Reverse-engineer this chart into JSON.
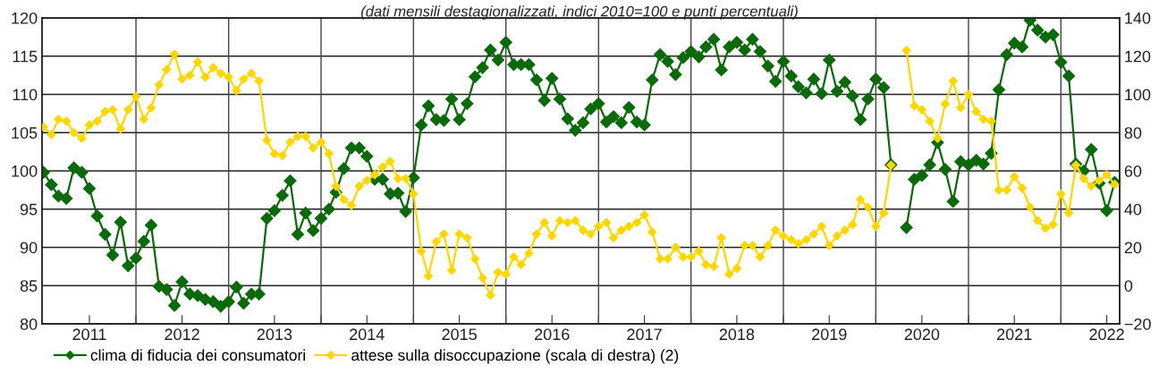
{
  "chart_data": {
    "type": "line",
    "subtitle": "(dati mensili destagionalizzati, indici 2010=100 e punti percentuali)",
    "x": [
      "2011-01",
      "2011-02",
      "2011-03",
      "2011-04",
      "2011-05",
      "2011-06",
      "2011-07",
      "2011-08",
      "2011-09",
      "2011-10",
      "2011-11",
      "2011-12",
      "2012-01",
      "2012-02",
      "2012-03",
      "2012-04",
      "2012-05",
      "2012-06",
      "2012-07",
      "2012-08",
      "2012-09",
      "2012-10",
      "2012-11",
      "2012-12",
      "2013-01",
      "2013-02",
      "2013-03",
      "2013-04",
      "2013-05",
      "2013-06",
      "2013-07",
      "2013-08",
      "2013-09",
      "2013-10",
      "2013-11",
      "2013-12",
      "2014-01",
      "2014-02",
      "2014-03",
      "2014-04",
      "2014-05",
      "2014-06",
      "2014-07",
      "2014-08",
      "2014-09",
      "2014-10",
      "2014-11",
      "2014-12",
      "2015-01",
      "2015-02",
      "2015-03",
      "2015-04",
      "2015-05",
      "2015-06",
      "2015-07",
      "2015-08",
      "2015-09",
      "2015-10",
      "2015-11",
      "2015-12",
      "2016-01",
      "2016-02",
      "2016-03",
      "2016-04",
      "2016-05",
      "2016-06",
      "2016-07",
      "2016-08",
      "2016-09",
      "2016-10",
      "2016-11",
      "2016-12",
      "2017-01",
      "2017-02",
      "2017-03",
      "2017-04",
      "2017-05",
      "2017-06",
      "2017-07",
      "2017-08",
      "2017-09",
      "2017-10",
      "2017-11",
      "2017-12",
      "2018-01",
      "2018-02",
      "2018-03",
      "2018-04",
      "2018-05",
      "2018-06",
      "2018-07",
      "2018-08",
      "2018-09",
      "2018-10",
      "2018-11",
      "2018-12",
      "2019-01",
      "2019-02",
      "2019-03",
      "2019-04",
      "2019-05",
      "2019-06",
      "2019-07",
      "2019-08",
      "2019-09",
      "2019-10",
      "2019-11",
      "2019-12",
      "2020-01",
      "2020-02",
      "2020-03",
      "2020-04",
      "2020-05",
      "2020-06",
      "2020-07",
      "2020-08",
      "2020-09",
      "2020-10",
      "2020-11",
      "2020-12",
      "2021-01",
      "2021-02",
      "2021-03",
      "2021-04",
      "2021-05",
      "2021-06",
      "2021-07",
      "2021-08",
      "2021-09",
      "2021-10",
      "2021-11",
      "2021-12",
      "2022-01",
      "2022-02",
      "2022-03",
      "2022-04",
      "2022-05",
      "2022-06",
      "2022-07",
      "2022-08"
    ],
    "series": [
      {
        "name": "clima di fiducia dei consumatori",
        "color": "#0a6a0a",
        "values": [
          99.8,
          98.2,
          96.7,
          96.4,
          100.4,
          99.8,
          97.7,
          94.1,
          91.7,
          89.0,
          93.3,
          87.6,
          88.6,
          90.8,
          92.9,
          84.9,
          84.5,
          82.4,
          85.5,
          83.9,
          83.7,
          83.2,
          82.9,
          82.3,
          82.9,
          84.8,
          82.7,
          83.9,
          83.9,
          93.8,
          94.8,
          96.8,
          98.7,
          91.7,
          94.5,
          92.2,
          93.8,
          95.0,
          97.2,
          100.3,
          103.0,
          103.0,
          101.9,
          98.9,
          98.9,
          97.0,
          97.1,
          94.7,
          99.1,
          106.0,
          108.5,
          106.7,
          106.6,
          109.4,
          106.7,
          108.8,
          112.3,
          113.5,
          115.8,
          114.5,
          116.8,
          113.9,
          113.9,
          113.9,
          111.9,
          109.2,
          112.1,
          109.4,
          106.8,
          105.3,
          106.3,
          108.1,
          108.8,
          106.4,
          107.1,
          106.3,
          108.3,
          106.4,
          106.0,
          111.9,
          115.2,
          114.3,
          112.6,
          114.8,
          115.6,
          114.9,
          116.2,
          117.2,
          113.2,
          116.2,
          116.8,
          115.8,
          117.2,
          115.6,
          113.7,
          111.7,
          114.3,
          112.4,
          111.0,
          110.2,
          112.0,
          110.1,
          114.5,
          110.4,
          111.6,
          109.8,
          106.7,
          109.4,
          112.0,
          110.9,
          100.8,
          null,
          92.6,
          98.9,
          99.4,
          100.8,
          103.7,
          100.2,
          96.0,
          101.2,
          100.8,
          101.4,
          100.9,
          102.3,
          110.6,
          115.2,
          116.7,
          116.2,
          119.7,
          118.4,
          117.5,
          117.8,
          114.2,
          112.4,
          100.9,
          100.0,
          102.8,
          98.4,
          94.8,
          98.5
        ]
      },
      {
        "name": "attese sulla disoccupazione (scala di destra) (2)",
        "color": "#ffd700",
        "axis": "y2",
        "values": [
          83,
          79,
          87,
          86,
          80,
          77,
          84,
          86,
          91,
          92,
          82,
          92,
          99,
          87,
          93,
          105,
          113,
          121,
          108,
          110,
          117,
          109,
          114,
          111,
          109,
          102,
          108,
          111,
          107,
          76,
          69,
          68,
          75,
          78,
          78,
          72,
          75,
          69,
          52,
          45,
          42,
          52,
          55,
          58,
          62,
          65,
          56,
          56,
          48,
          18,
          5,
          23,
          27,
          8,
          27,
          25,
          14,
          4,
          -5,
          7,
          6,
          15,
          11,
          17,
          27,
          33,
          26,
          34,
          33,
          34,
          29,
          27,
          31,
          33,
          25,
          29,
          31,
          33,
          37,
          28,
          14,
          14,
          20,
          15,
          15,
          18,
          11,
          10,
          25,
          6,
          9,
          21,
          21,
          15,
          21,
          29,
          26,
          24,
          22,
          24,
          27,
          31,
          21,
          26,
          29,
          32,
          45,
          41,
          31,
          38,
          63,
          null,
          123,
          94,
          92,
          86,
          77,
          95,
          107,
          93,
          100,
          91,
          87,
          86,
          50,
          50,
          57,
          51,
          41,
          34,
          30,
          32,
          48,
          38,
          63,
          56,
          52,
          55,
          58,
          53
        ]
      }
    ],
    "xlim": [
      "2010-12-26",
      "2022-08-21"
    ],
    "xticks": [
      {
        "value": "2011-07",
        "label": "2011"
      },
      {
        "value": "2012-01",
        "label": null
      },
      {
        "value": "2012-07",
        "label": "2012"
      },
      {
        "value": "2013-01",
        "label": null
      },
      {
        "value": "2013-07",
        "label": "2013"
      },
      {
        "value": "2014-01",
        "label": null
      },
      {
        "value": "2014-07",
        "label": "2014"
      },
      {
        "value": "2015-01",
        "label": null
      },
      {
        "value": "2015-07",
        "label": "2015"
      },
      {
        "value": "2016-01",
        "label": null
      },
      {
        "value": "2016-07",
        "label": "2016"
      },
      {
        "value": "2017-01",
        "label": null
      },
      {
        "value": "2017-07",
        "label": "2017"
      },
      {
        "value": "2018-01",
        "label": null
      },
      {
        "value": "2018-07",
        "label": "2018"
      },
      {
        "value": "2019-01",
        "label": null
      },
      {
        "value": "2019-07",
        "label": "2019"
      },
      {
        "value": "2020-01",
        "label": null
      },
      {
        "value": "2020-07",
        "label": "2020"
      },
      {
        "value": "2021-01",
        "label": null
      },
      {
        "value": "2021-07",
        "label": "2021"
      },
      {
        "value": "2022-01",
        "label": null
      },
      {
        "value": "2022-07",
        "label": "2022"
      }
    ],
    "ylim": [
      80,
      120
    ],
    "yticks": [
      80,
      85,
      90,
      95,
      100,
      105,
      110,
      115,
      120
    ],
    "y2lim": [
      -20,
      140
    ],
    "y2ticks": [
      {
        "value": -20,
        "label": "−20"
      },
      0,
      20,
      40,
      60,
      80,
      100,
      120,
      140
    ],
    "grid": true,
    "legend": "bottom left",
    "marker": "diamond",
    "line_style": "solid"
  }
}
